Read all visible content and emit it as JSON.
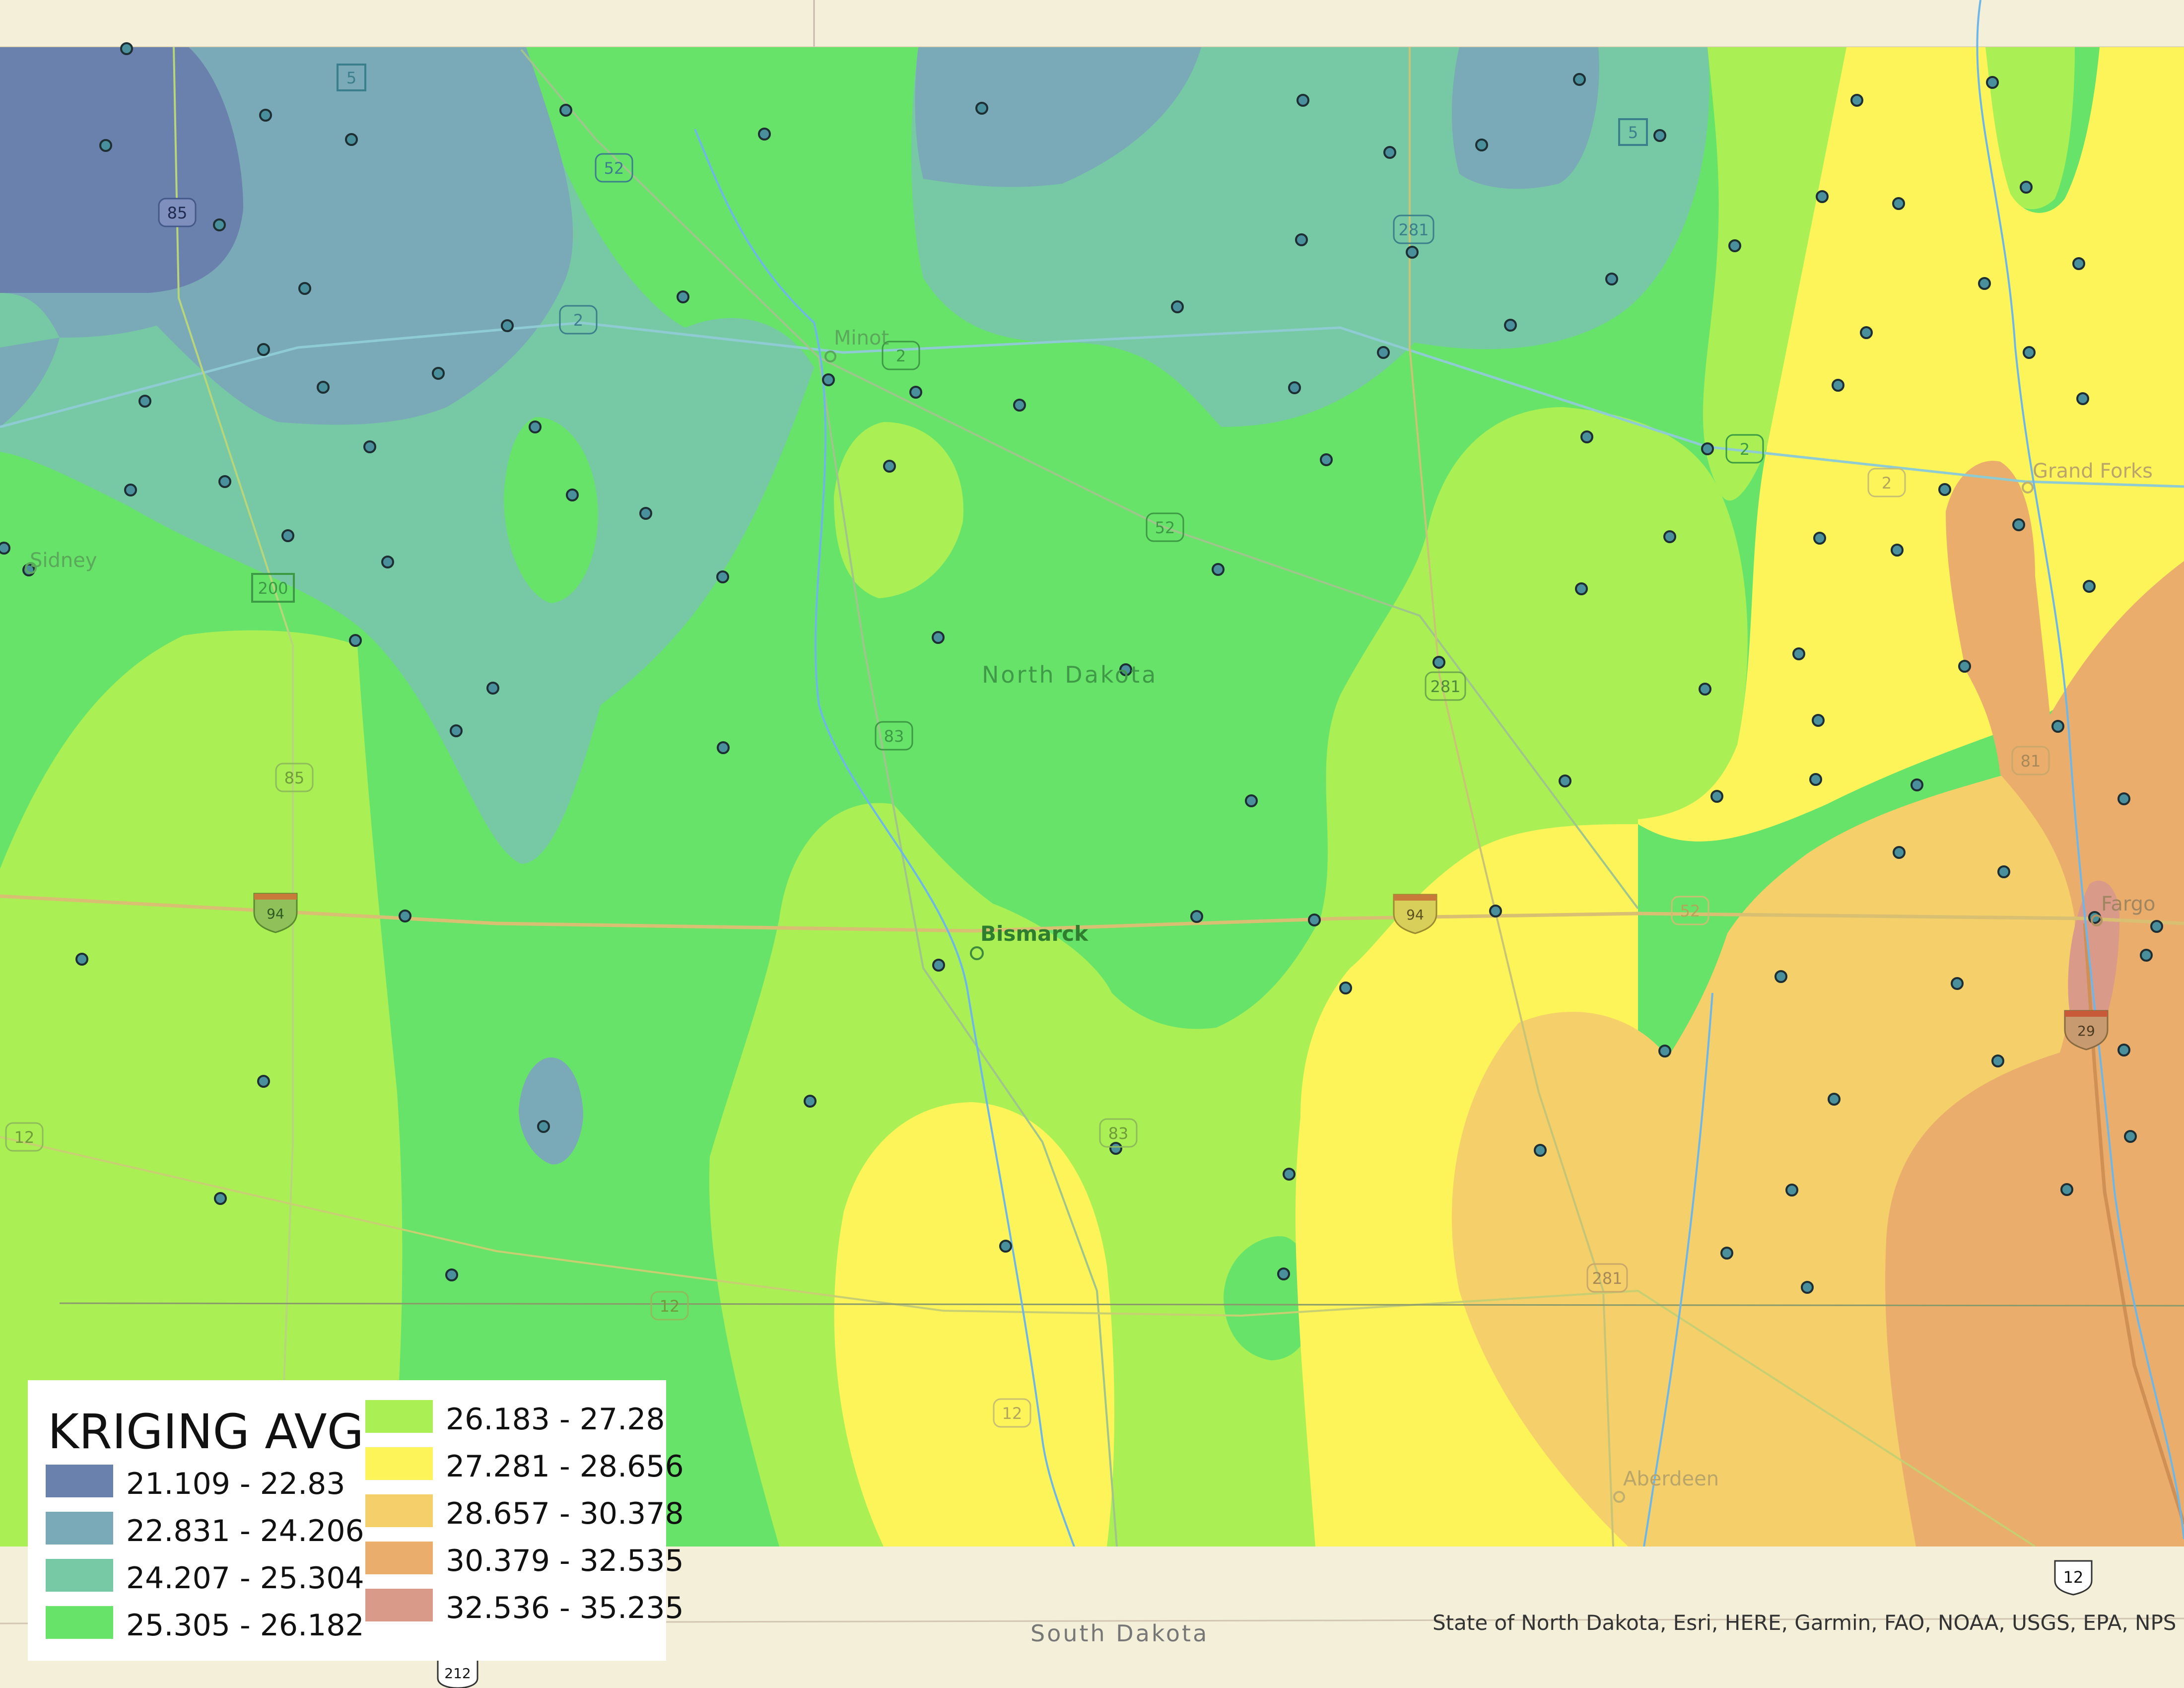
{
  "legend": {
    "title": "KRIGING AVG",
    "classes": [
      {
        "label": "21.109 - 22.83",
        "color": "#6a80ad"
      },
      {
        "label": "22.831 - 24.206",
        "color": "#7aa9b8"
      },
      {
        "label": "24.207 - 25.304",
        "color": "#76c9a4"
      },
      {
        "label": "25.305 - 26.182",
        "color": "#68e36a"
      },
      {
        "label": "26.183 - 27.28",
        "color": "#aaf055"
      },
      {
        "label": "27.281 - 28.656",
        "color": "#fdf45a"
      },
      {
        "label": "28.657 - 30.378",
        "color": "#f4cf6a"
      },
      {
        "label": "30.379 - 32.535",
        "color": "#eaad6c"
      },
      {
        "label": "32.536 - 35.235",
        "color": "#d99a8a"
      }
    ]
  },
  "places": {
    "minot": "Minot",
    "sidney": "Sidney",
    "grand_forks": "Grand Forks",
    "fargo": "Fargo",
    "bismarck": "Bismarck",
    "aberdeen": "Aberdeen",
    "north_dakota": "North Dakota",
    "south_dakota": "South Dakota"
  },
  "shields": {
    "s5a": "5",
    "s5b": "5",
    "s85a": "85",
    "s52a": "52",
    "s2a": "2",
    "s2b": "2",
    "s281a": "281",
    "s2c": "2",
    "s2d": "2",
    "s200": "200",
    "s52b": "52",
    "s281b": "281",
    "s83a": "83",
    "s81": "81",
    "s85b": "85",
    "s94a": "94",
    "s94b": "94",
    "s52c": "52",
    "s29": "29",
    "s12a": "12",
    "s83b": "83",
    "s12b": "12",
    "s281c": "281",
    "s12c": "12",
    "s12d": "12",
    "s212": "212"
  },
  "attribution": "State of North Dakota, Esri, HERE, Garmin, FAO, NOAA, USGS, EPA, NPS",
  "colors": {
    "basemap": "#f3efd9",
    "water": "#6fb6e8",
    "station": "#4a8f9c",
    "border": "#c9b8b0"
  }
}
